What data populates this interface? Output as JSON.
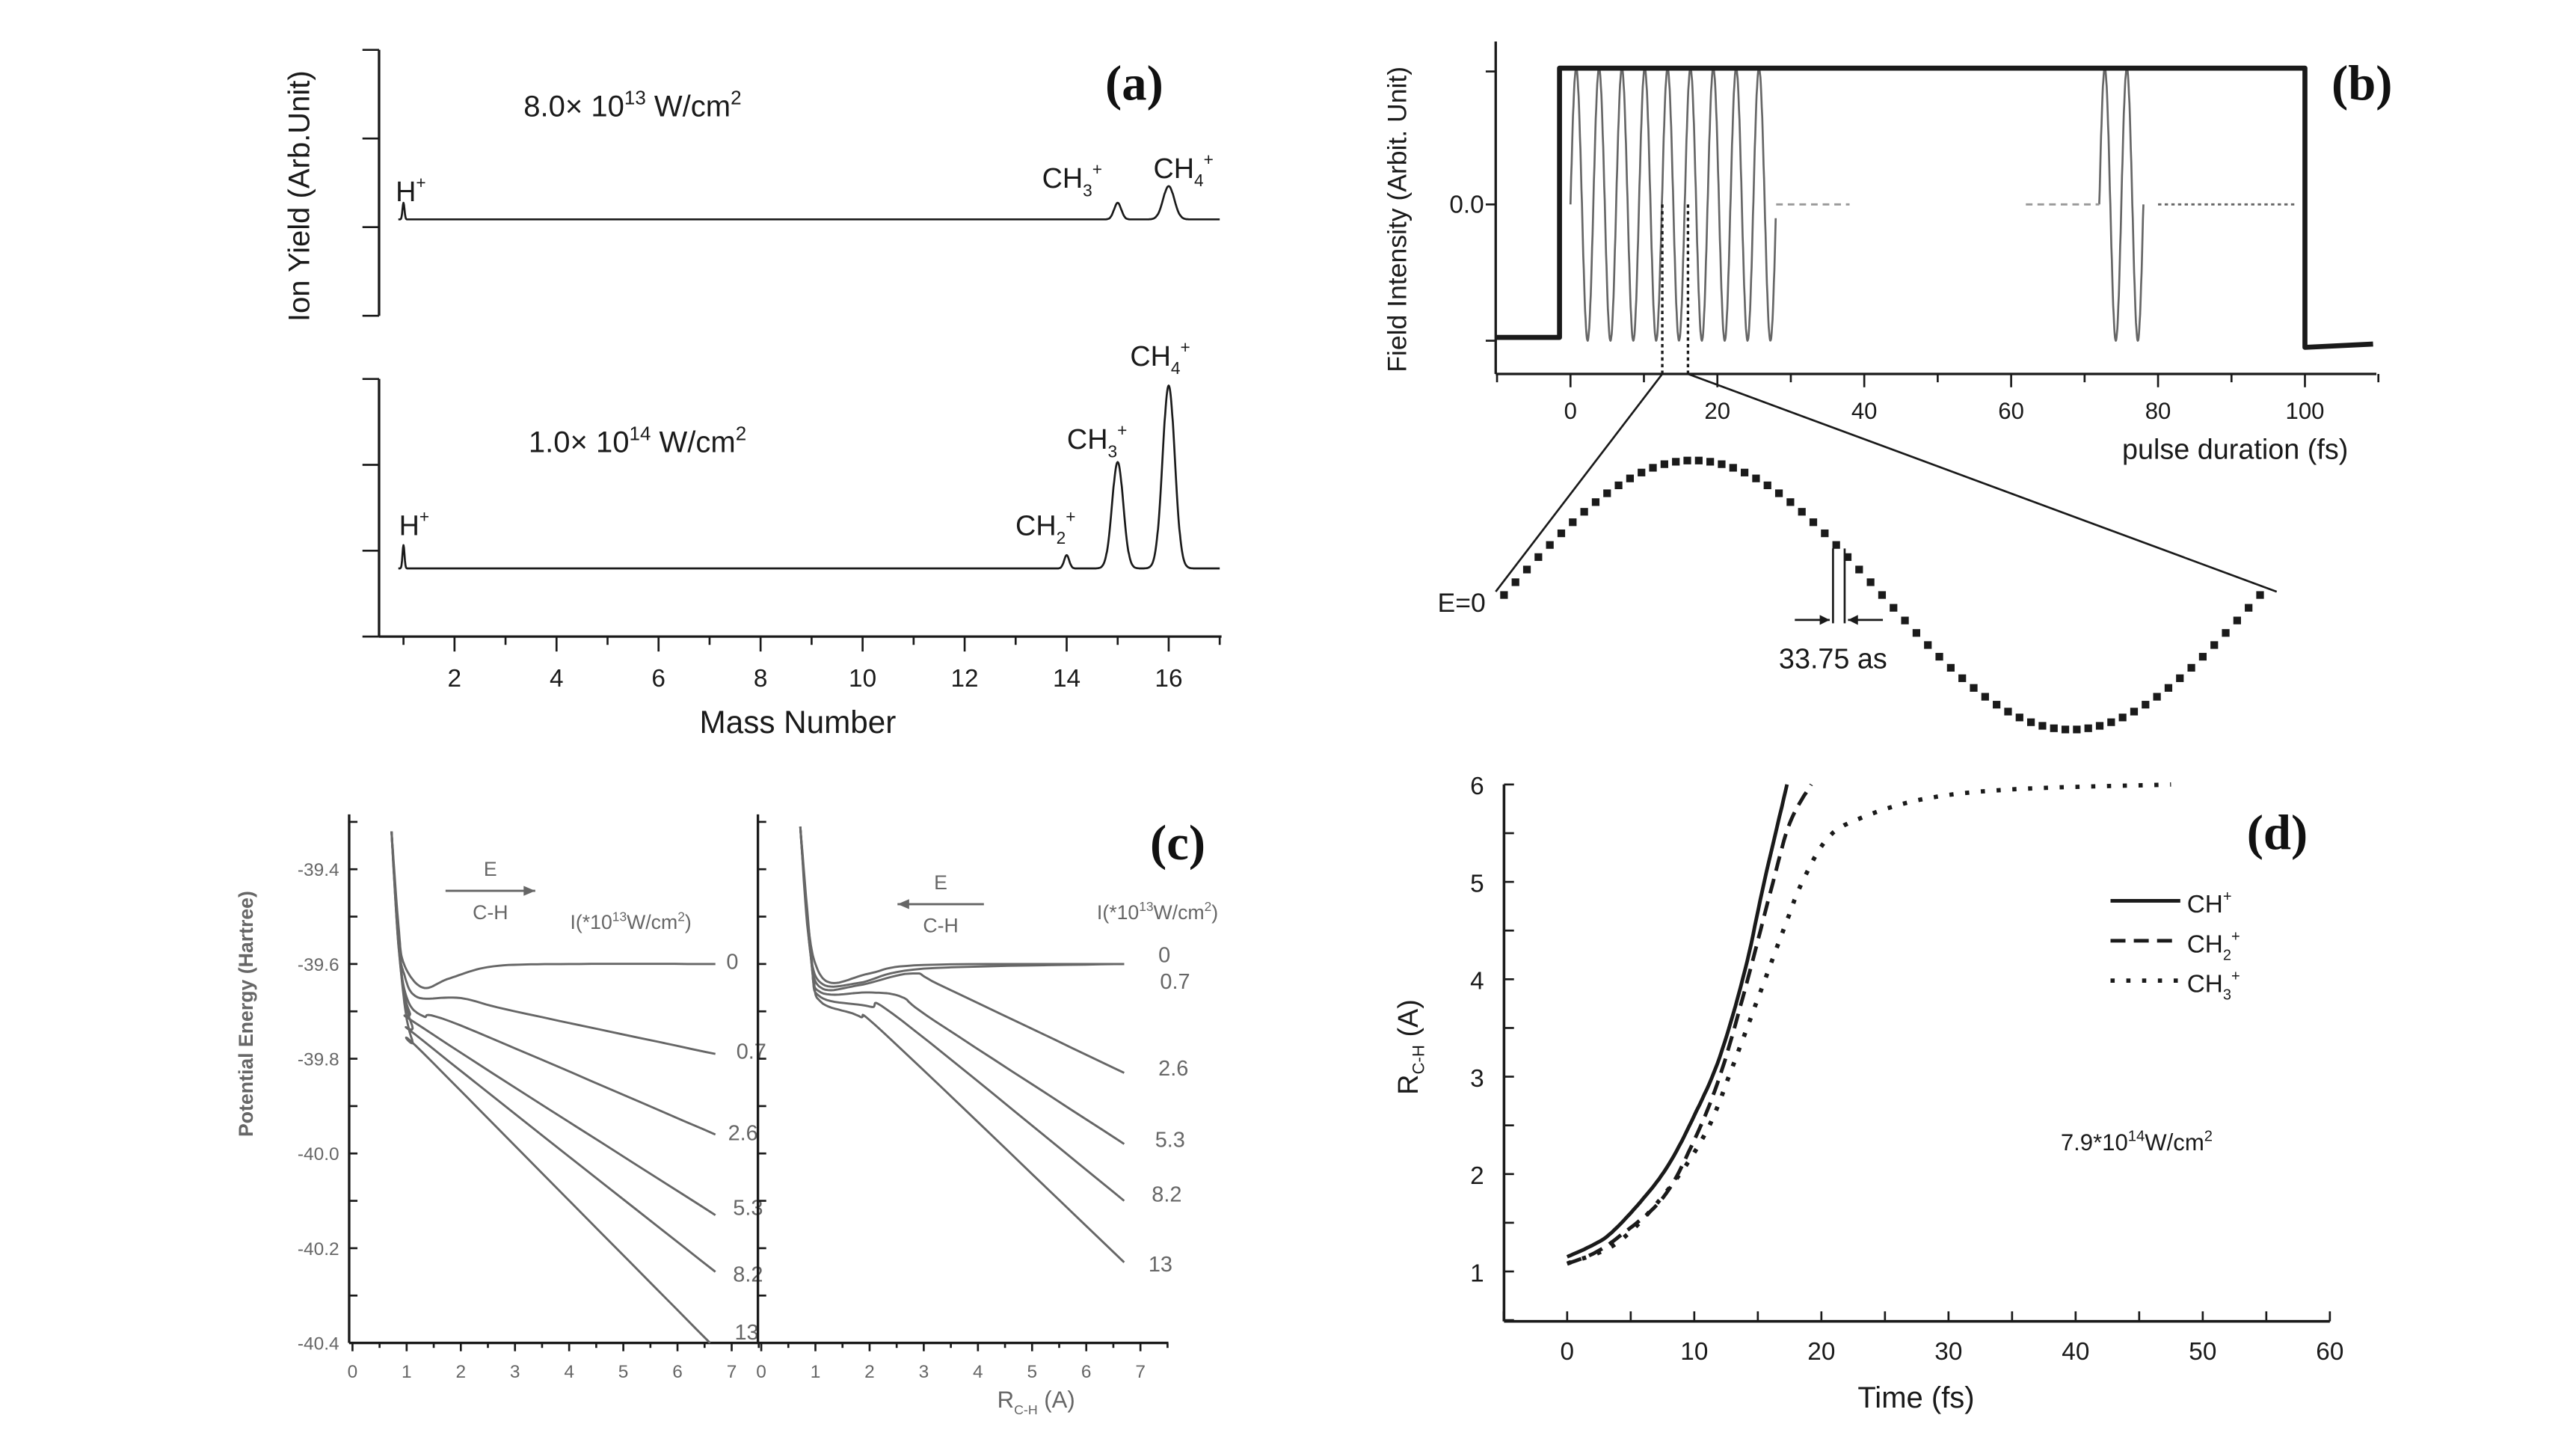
{
  "colors": {
    "ink": "#1a1a1a",
    "gray": "#666666",
    "light": "#999999"
  },
  "chart_data": [
    {
      "panel": "(a)",
      "type": "line",
      "xlabel": "Mass Number",
      "ylabel": "Ion Yield (Arb.Unit)",
      "xlim": [
        0.2,
        17
      ],
      "xticks": [
        2,
        4,
        6,
        8,
        10,
        12,
        14,
        16
      ],
      "subplots": [
        {
          "intensity": {
            "value": "8.0× 10",
            "exp": "13",
            "unit": " W/cm",
            "unit_exp": "2"
          },
          "peaks": [
            {
              "mass": 1,
              "height": 0.1,
              "width": 0.02,
              "label": {
                "base": "H",
                "sub": "",
                "sup": "+"
              }
            },
            {
              "mass": 15,
              "height": 0.1,
              "width": 0.07,
              "label": {
                "base": "CH",
                "sub": "3",
                "sup": "+"
              }
            },
            {
              "mass": 16,
              "height": 0.2,
              "width": 0.11,
              "label": {
                "base": "CH",
                "sub": "4",
                "sup": "+"
              }
            }
          ]
        },
        {
          "intensity": {
            "value": "1.0× 10",
            "exp": "14",
            "unit": " W/cm",
            "unit_exp": "2"
          },
          "peaks": [
            {
              "mass": 1,
              "height": 0.14,
              "width": 0.02,
              "label": {
                "base": "H",
                "sub": "",
                "sup": "+"
              }
            },
            {
              "mass": 14,
              "height": 0.08,
              "width": 0.05,
              "label": {
                "base": "CH",
                "sub": "2",
                "sup": "+"
              }
            },
            {
              "mass": 15,
              "height": 0.64,
              "width": 0.11,
              "label": {
                "base": "CH",
                "sub": "3",
                "sup": "+"
              }
            },
            {
              "mass": 16,
              "height": 1.1,
              "width": 0.12,
              "label": {
                "base": "CH",
                "sub": "4",
                "sup": "+"
              }
            }
          ]
        }
      ]
    },
    {
      "panel": "(b)",
      "type": "line",
      "xlabel": "pulse duration (fs)",
      "ylabel": "Field Intensity (Arbit. Unit)",
      "ytick": "0.0",
      "xlim": [
        -10,
        110
      ],
      "xticks": [
        0,
        20,
        40,
        60,
        80,
        100
      ],
      "envelope": {
        "start": -1.5,
        "end": 100,
        "high": 1.0,
        "low": -1.0
      },
      "oscillation_segments": [
        {
          "from": 0,
          "to": 28,
          "cycles": 9
        },
        {
          "from": 72,
          "to": 78,
          "cycles": 2
        }
      ],
      "dashed_segments": [
        {
          "from": 28,
          "to": 38
        },
        {
          "from": 62,
          "to": 72
        }
      ],
      "dotted_segments": [
        {
          "from": 80,
          "to": 99
        }
      ],
      "zoom_window": [
        12.5,
        16
      ],
      "inset": {
        "zero_label": "E=0",
        "step_label": "33.75 as",
        "cycles": 1,
        "samples": 66
      }
    },
    {
      "panel": "(c)",
      "type": "line",
      "ylabel": "Potential Energy (Hartree)",
      "xlabel": {
        "base": "R",
        "sub": "C-H",
        "unit": " (A)"
      },
      "ylim": [
        -40.4,
        -39.3
      ],
      "yticks": [
        "-39.4",
        "-39.6",
        "-39.8",
        "-40.0",
        "-40.2",
        "-40.4"
      ],
      "ytick_values": [
        -39.4,
        -39.6,
        -39.8,
        -40.0,
        -40.2,
        -40.4
      ],
      "xticks": [
        0,
        1,
        2,
        3,
        4,
        5,
        6,
        7
      ],
      "subplots": [
        {
          "field_label": "E",
          "bond_label": "C-H",
          "field_direction": "right",
          "legend_title": {
            "base": "I(*10",
            "exp": "13",
            "unit": "W/cm",
            "unit_exp": "2",
            "close": ")"
          },
          "curves": [
            {
              "label": "0",
              "points": [
                [
                  0.72,
                  -39.32
                ],
                [
                  0.85,
                  -39.52
                ],
                [
                  0.95,
                  -39.6
                ],
                [
                  1.3,
                  -39.65
                ],
                [
                  1.8,
                  -39.63
                ],
                [
                  2.6,
                  -39.605
                ],
                [
                  4,
                  -39.6
                ],
                [
                  6.7,
                  -39.6
                ]
              ]
            },
            {
              "label": "0.7",
              "points": [
                [
                  0.72,
                  -39.32
                ],
                [
                  0.85,
                  -39.55
                ],
                [
                  0.95,
                  -39.62
                ],
                [
                  1.2,
                  -39.67
                ],
                [
                  2,
                  -39.672
                ],
                [
                  3,
                  -39.7
                ],
                [
                  6.7,
                  -39.79
                ]
              ]
            },
            {
              "label": "2.6",
              "points": [
                [
                  0.72,
                  -39.32
                ],
                [
                  0.85,
                  -39.56
                ],
                [
                  1.0,
                  -39.67
                ],
                [
                  1.3,
                  -39.71
                ],
                [
                  2,
                  -39.73
                ],
                [
                  6.7,
                  -39.96
                ]
              ]
            },
            {
              "label": "5.3",
              "points": [
                [
                  0.72,
                  -39.32
                ],
                [
                  0.87,
                  -39.58
                ],
                [
                  1.05,
                  -39.7
                ],
                [
                  1.5,
                  -39.75
                ],
                [
                  6.7,
                  -40.13
                ]
              ]
            },
            {
              "label": "8.2",
              "points": [
                [
                  0.72,
                  -39.32
                ],
                [
                  0.88,
                  -39.6
                ],
                [
                  1.1,
                  -39.73
                ],
                [
                  1.5,
                  -39.78
                ],
                [
                  6.7,
                  -40.25
                ]
              ]
            },
            {
              "label": "13",
              "points": [
                [
                  0.72,
                  -39.32
                ],
                [
                  0.9,
                  -39.62
                ],
                [
                  1.1,
                  -39.76
                ],
                [
                  1.5,
                  -39.81
                ],
                [
                  6.6,
                  -40.4
                ]
              ]
            }
          ]
        },
        {
          "field_label": "E",
          "bond_label": "C-H",
          "field_direction": "left",
          "legend_title": {
            "base": "I(*10",
            "exp": "13",
            "unit": "W/cm",
            "unit_exp": "2",
            "close": ")"
          },
          "curves": [
            {
              "label": "0",
              "points": [
                [
                  0.72,
                  -39.31
                ],
                [
                  0.85,
                  -39.5
                ],
                [
                  1.0,
                  -39.6
                ],
                [
                  1.3,
                  -39.64
                ],
                [
                  2,
                  -39.62
                ],
                [
                  3,
                  -39.602
                ],
                [
                  6.7,
                  -39.6
                ]
              ]
            },
            {
              "label": "0.7",
              "points": [
                [
                  0.72,
                  -39.31
                ],
                [
                  0.88,
                  -39.55
                ],
                [
                  1.1,
                  -39.64
                ],
                [
                  1.8,
                  -39.64
                ],
                [
                  3,
                  -39.61
                ],
                [
                  6.7,
                  -39.6
                ]
              ]
            },
            {
              "label": "2.6",
              "points": [
                [
                  0.72,
                  -39.31
                ],
                [
                  0.9,
                  -39.57
                ],
                [
                  1.1,
                  -39.65
                ],
                [
                  1.8,
                  -39.645
                ],
                [
                  2.8,
                  -39.62
                ],
                [
                  3.4,
                  -39.65
                ],
                [
                  6.7,
                  -39.83
                ]
              ]
            },
            {
              "label": "5.3",
              "points": [
                [
                  0.72,
                  -39.31
                ],
                [
                  0.92,
                  -39.59
                ],
                [
                  1.1,
                  -39.66
                ],
                [
                  2,
                  -39.66
                ],
                [
                  2.6,
                  -39.67
                ],
                [
                  3.2,
                  -39.72
                ],
                [
                  6.7,
                  -39.98
                ]
              ]
            },
            {
              "label": "8.2",
              "points": [
                [
                  0.72,
                  -39.31
                ],
                [
                  0.93,
                  -39.6
                ],
                [
                  1.1,
                  -39.67
                ],
                [
                  2,
                  -39.69
                ],
                [
                  2.6,
                  -39.72
                ],
                [
                  6.7,
                  -40.1
                ]
              ]
            },
            {
              "label": "13",
              "points": [
                [
                  0.72,
                  -39.31
                ],
                [
                  0.95,
                  -39.61
                ],
                [
                  1.1,
                  -39.68
                ],
                [
                  1.8,
                  -39.71
                ],
                [
                  2.4,
                  -39.76
                ],
                [
                  6.7,
                  -40.23
                ]
              ]
            }
          ]
        }
      ]
    },
    {
      "panel": "(d)",
      "type": "line",
      "xlabel": "Time (fs)",
      "ylabel": {
        "base": "R",
        "sub": "C-H",
        "unit": " (A)"
      },
      "xlim": [
        -5,
        60
      ],
      "ylim": [
        0.5,
        6
      ],
      "xticks": [
        0,
        10,
        20,
        30,
        40,
        50,
        60
      ],
      "yticks": [
        1,
        2,
        3,
        4,
        5,
        6
      ],
      "annotation": {
        "base": "7.9*10",
        "exp": "14",
        "unit": "W/cm",
        "unit_exp": "2"
      },
      "legend_position": "right",
      "series": [
        {
          "name": {
            "base": "CH",
            "sub": "",
            "sup": "+"
          },
          "style": "solid",
          "points": [
            [
              0,
              1.15
            ],
            [
              2,
              1.27
            ],
            [
              3.5,
              1.4
            ],
            [
              6,
              1.75
            ],
            [
              8,
              2.1
            ],
            [
              10,
              2.6
            ],
            [
              12,
              3.2
            ],
            [
              14,
              4.1
            ],
            [
              15.5,
              5
            ],
            [
              17.3,
              6
            ]
          ]
        },
        {
          "name": {
            "base": "CH",
            "sub": "2",
            "sup": "+"
          },
          "style": "dashed",
          "points": [
            [
              0,
              1.08
            ],
            [
              2,
              1.18
            ],
            [
              4,
              1.35
            ],
            [
              7.5,
              1.75
            ],
            [
              10,
              2.35
            ],
            [
              12,
              3
            ],
            [
              14,
              3.9
            ],
            [
              16,
              4.9
            ],
            [
              17.5,
              5.6
            ],
            [
              19.2,
              6
            ]
          ]
        },
        {
          "name": {
            "base": "CH",
            "sub": "3",
            "sup": "+"
          },
          "style": "dotted",
          "points": [
            [
              0,
              1.08
            ],
            [
              4,
              1.3
            ],
            [
              8,
              1.85
            ],
            [
              11,
              2.45
            ],
            [
              13,
              3.1
            ],
            [
              15,
              3.8
            ],
            [
              17,
              4.5
            ],
            [
              18.5,
              5
            ],
            [
              20.5,
              5.45
            ],
            [
              23,
              5.65
            ],
            [
              28,
              5.85
            ],
            [
              35,
              5.95
            ],
            [
              47.5,
              6
            ]
          ]
        }
      ]
    }
  ]
}
